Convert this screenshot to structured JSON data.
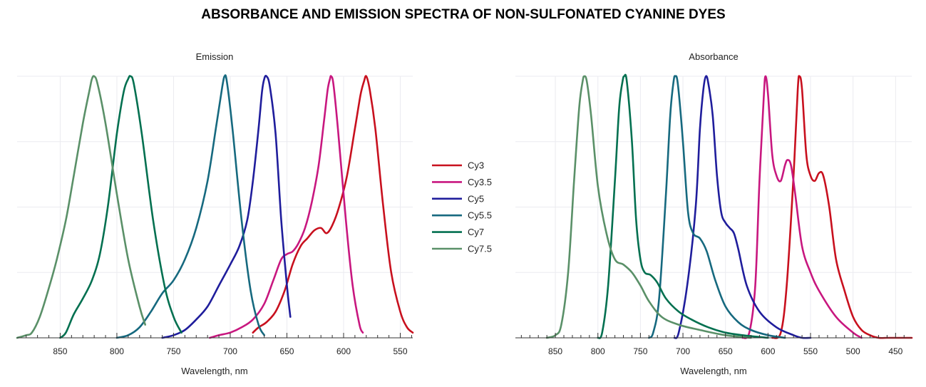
{
  "title": "ABSORBANCE AND EMISSION SPECTRA OF NON-SULFONATED CYANINE DYES",
  "colors": {
    "Cy3": "#c8101e",
    "Cy3.5": "#c8177f",
    "Cy5": "#1f1d9c",
    "Cy5.5": "#16697f",
    "Cy7": "#037050",
    "Cy7.5": "#5a9068"
  },
  "legend": {
    "entries": [
      "Cy3",
      "Cy3.5",
      "Cy5",
      "Cy5.5",
      "Cy7",
      "Cy7.5"
    ],
    "placement": "center-between-panels"
  },
  "chart_data": [
    {
      "type": "line",
      "title": "Absorbance",
      "xlabel": "Wavelength, nm",
      "ylabel": "",
      "x_reversed": true,
      "xlim": [
        431,
        897
      ],
      "ylim": [
        0,
        1
      ],
      "xticks": [
        450,
        500,
        550,
        600,
        650,
        700,
        750,
        800,
        850
      ],
      "minor_tick_step": 10,
      "grid": true,
      "series": [
        {
          "name": "Cy3",
          "points": [
            [
              595,
              0
            ],
            [
              585,
              0.02
            ],
            [
              578,
              0.2
            ],
            [
              570,
              0.62
            ],
            [
              565,
              0.95
            ],
            [
              563,
              1.0
            ],
            [
              560,
              0.95
            ],
            [
              555,
              0.7
            ],
            [
              550,
              0.62
            ],
            [
              545,
              0.6
            ],
            [
              540,
              0.63
            ],
            [
              535,
              0.62
            ],
            [
              528,
              0.5
            ],
            [
              520,
              0.3
            ],
            [
              510,
              0.18
            ],
            [
              500,
              0.08
            ],
            [
              490,
              0.03
            ],
            [
              480,
              0.01
            ],
            [
              470,
              0.0
            ],
            [
              460,
              0.0
            ],
            [
              450,
              0.0
            ],
            [
              440,
              0.0
            ],
            [
              431,
              0.0
            ]
          ]
        },
        {
          "name": "Cy3.5",
          "points": [
            [
              630,
              0
            ],
            [
              622,
              0.02
            ],
            [
              615,
              0.2
            ],
            [
              610,
              0.6
            ],
            [
              605,
              0.92
            ],
            [
              603,
              1.0
            ],
            [
              600,
              0.93
            ],
            [
              595,
              0.7
            ],
            [
              590,
              0.62
            ],
            [
              585,
              0.6
            ],
            [
              580,
              0.66
            ],
            [
              577,
              0.68
            ],
            [
              573,
              0.66
            ],
            [
              568,
              0.55
            ],
            [
              560,
              0.35
            ],
            [
              550,
              0.25
            ],
            [
              540,
              0.18
            ],
            [
              520,
              0.08
            ],
            [
              500,
              0.02
            ],
            [
              490,
              0.0
            ]
          ]
        },
        {
          "name": "Cy5",
          "points": [
            [
              710,
              0
            ],
            [
              705,
              0.02
            ],
            [
              695,
              0.2
            ],
            [
              685,
              0.5
            ],
            [
              680,
              0.8
            ],
            [
              676,
              0.95
            ],
            [
              673,
              1.0
            ],
            [
              670,
              0.97
            ],
            [
              665,
              0.85
            ],
            [
              660,
              0.62
            ],
            [
              655,
              0.48
            ],
            [
              650,
              0.44
            ],
            [
              645,
              0.42
            ],
            [
              640,
              0.4
            ],
            [
              635,
              0.34
            ],
            [
              625,
              0.2
            ],
            [
              610,
              0.1
            ],
            [
              590,
              0.04
            ],
            [
              570,
              0.01
            ],
            [
              560,
              0.0
            ],
            [
              550,
              0.0
            ]
          ]
        },
        {
          "name": "Cy5.5",
          "points": [
            [
              740,
              0
            ],
            [
              735,
              0.02
            ],
            [
              728,
              0.15
            ],
            [
              720,
              0.55
            ],
            [
              715,
              0.85
            ],
            [
              711,
              0.98
            ],
            [
              709,
              1.0
            ],
            [
              706,
              0.97
            ],
            [
              700,
              0.75
            ],
            [
              694,
              0.48
            ],
            [
              688,
              0.4
            ],
            [
              680,
              0.38
            ],
            [
              672,
              0.33
            ],
            [
              662,
              0.22
            ],
            [
              650,
              0.12
            ],
            [
              635,
              0.06
            ],
            [
              620,
              0.03
            ],
            [
              600,
              0.01
            ],
            [
              580,
              0.0
            ]
          ]
        },
        {
          "name": "Cy7",
          "points": [
            [
              800,
              0
            ],
            [
              795,
              0.02
            ],
            [
              788,
              0.2
            ],
            [
              780,
              0.6
            ],
            [
              775,
              0.88
            ],
            [
              771,
              0.98
            ],
            [
              769,
              1.0
            ],
            [
              766,
              0.98
            ],
            [
              760,
              0.75
            ],
            [
              755,
              0.45
            ],
            [
              750,
              0.3
            ],
            [
              745,
              0.25
            ],
            [
              738,
              0.24
            ],
            [
              730,
              0.21
            ],
            [
              720,
              0.15
            ],
            [
              705,
              0.1
            ],
            [
              690,
              0.07
            ],
            [
              670,
              0.04
            ],
            [
              650,
              0.02
            ],
            [
              630,
              0.01
            ],
            [
              600,
              0.0
            ]
          ]
        },
        {
          "name": "Cy7.5",
          "points": [
            [
              860,
              0
            ],
            [
              850,
              0.01
            ],
            [
              843,
              0.05
            ],
            [
              835,
              0.25
            ],
            [
              828,
              0.6
            ],
            [
              822,
              0.88
            ],
            [
              818,
              0.98
            ],
            [
              816,
              1.0
            ],
            [
              813,
              0.98
            ],
            [
              808,
              0.85
            ],
            [
              800,
              0.58
            ],
            [
              790,
              0.4
            ],
            [
              780,
              0.3
            ],
            [
              770,
              0.28
            ],
            [
              760,
              0.25
            ],
            [
              750,
              0.2
            ],
            [
              740,
              0.14
            ],
            [
              725,
              0.08
            ],
            [
              705,
              0.05
            ],
            [
              680,
              0.03
            ],
            [
              650,
              0.01
            ],
            [
              620,
              0.0
            ]
          ]
        }
      ]
    },
    {
      "type": "line",
      "title": "Emission",
      "xlabel": "Wavelength, nm",
      "ylabel": "",
      "x_reversed": true,
      "xlim": [
        539,
        888
      ],
      "ylim": [
        0,
        1
      ],
      "xticks": [
        550,
        600,
        650,
        700,
        750,
        800,
        850
      ],
      "minor_tick_step": 10,
      "grid": true,
      "series": [
        {
          "name": "Cy3",
          "points": [
            [
              680,
              0.02
            ],
            [
              675,
              0.04
            ],
            [
              668,
              0.06
            ],
            [
              660,
              0.1
            ],
            [
              652,
              0.18
            ],
            [
              645,
              0.28
            ],
            [
              638,
              0.35
            ],
            [
              632,
              0.38
            ],
            [
              626,
              0.41
            ],
            [
              620,
              0.42
            ],
            [
              615,
              0.4
            ],
            [
              610,
              0.43
            ],
            [
              604,
              0.5
            ],
            [
              597,
              0.62
            ],
            [
              590,
              0.8
            ],
            [
              585,
              0.93
            ],
            [
              582,
              0.98
            ],
            [
              580,
              1.0
            ],
            [
              577,
              0.95
            ],
            [
              572,
              0.8
            ],
            [
              565,
              0.5
            ],
            [
              558,
              0.25
            ],
            [
              550,
              0.1
            ],
            [
              544,
              0.04
            ],
            [
              539,
              0.02
            ]
          ]
        },
        {
          "name": "Cy3.5",
          "points": [
            [
              718,
              0.0
            ],
            [
              710,
              0.01
            ],
            [
              700,
              0.02
            ],
            [
              690,
              0.04
            ],
            [
              680,
              0.07
            ],
            [
              670,
              0.13
            ],
            [
              662,
              0.22
            ],
            [
              655,
              0.3
            ],
            [
              650,
              0.32
            ],
            [
              645,
              0.33
            ],
            [
              640,
              0.36
            ],
            [
              634,
              0.42
            ],
            [
              628,
              0.52
            ],
            [
              622,
              0.66
            ],
            [
              617,
              0.84
            ],
            [
              614,
              0.95
            ],
            [
              612,
              0.99
            ],
            [
              611,
              1.0
            ],
            [
              609,
              0.97
            ],
            [
              605,
              0.8
            ],
            [
              598,
              0.45
            ],
            [
              592,
              0.2
            ],
            [
              586,
              0.05
            ],
            [
              583,
              0.02
            ]
          ]
        },
        {
          "name": "Cy5",
          "points": [
            [
              760,
              0
            ],
            [
              750,
              0.01
            ],
            [
              740,
              0.03
            ],
            [
              730,
              0.07
            ],
            [
              720,
              0.12
            ],
            [
              710,
              0.2
            ],
            [
              700,
              0.28
            ],
            [
              692,
              0.35
            ],
            [
              685,
              0.45
            ],
            [
              680,
              0.6
            ],
            [
              675,
              0.8
            ],
            [
              672,
              0.94
            ],
            [
              670,
              0.99
            ],
            [
              668,
              1.0
            ],
            [
              665,
              0.96
            ],
            [
              660,
              0.78
            ],
            [
              655,
              0.45
            ],
            [
              650,
              0.2
            ],
            [
              647,
              0.08
            ]
          ]
        },
        {
          "name": "Cy5.5",
          "points": [
            [
              800,
              0
            ],
            [
              790,
              0.01
            ],
            [
              780,
              0.04
            ],
            [
              770,
              0.1
            ],
            [
              760,
              0.17
            ],
            [
              750,
              0.22
            ],
            [
              740,
              0.3
            ],
            [
              730,
              0.42
            ],
            [
              720,
              0.6
            ],
            [
              712,
              0.82
            ],
            [
              707,
              0.96
            ],
            [
              705,
              1.0
            ],
            [
              703,
              0.98
            ],
            [
              698,
              0.8
            ],
            [
              690,
              0.45
            ],
            [
              682,
              0.18
            ],
            [
              675,
              0.05
            ],
            [
              670,
              0.01
            ]
          ]
        },
        {
          "name": "Cy7",
          "points": [
            [
              850,
              0
            ],
            [
              845,
              0.02
            ],
            [
              838,
              0.09
            ],
            [
              830,
              0.15
            ],
            [
              822,
              0.22
            ],
            [
              815,
              0.32
            ],
            [
              808,
              0.5
            ],
            [
              800,
              0.78
            ],
            [
              794,
              0.94
            ],
            [
              790,
              0.99
            ],
            [
              788,
              1.0
            ],
            [
              785,
              0.97
            ],
            [
              778,
              0.78
            ],
            [
              768,
              0.45
            ],
            [
              758,
              0.2
            ],
            [
              750,
              0.08
            ],
            [
              743,
              0.02
            ]
          ]
        },
        {
          "name": "Cy7.5",
          "points": [
            [
              888,
              0
            ],
            [
              880,
              0.01
            ],
            [
              875,
              0.02
            ],
            [
              868,
              0.08
            ],
            [
              860,
              0.19
            ],
            [
              853,
              0.3
            ],
            [
              845,
              0.45
            ],
            [
              838,
              0.62
            ],
            [
              830,
              0.82
            ],
            [
              824,
              0.95
            ],
            [
              822,
              0.99
            ],
            [
              820,
              1.0
            ],
            [
              817,
              0.97
            ],
            [
              810,
              0.82
            ],
            [
              800,
              0.55
            ],
            [
              790,
              0.3
            ],
            [
              780,
              0.12
            ],
            [
              775,
              0.05
            ]
          ]
        }
      ]
    }
  ]
}
